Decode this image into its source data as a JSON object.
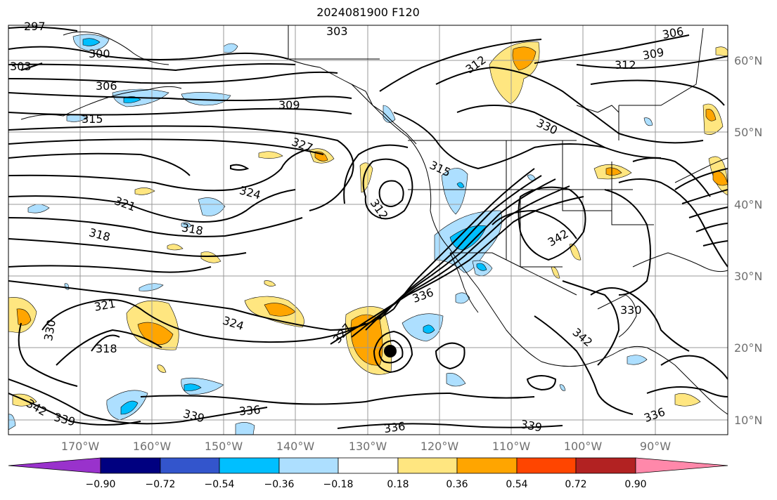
{
  "title": "2024081900 F120",
  "map": {
    "lat_labels": [
      "60°N",
      "50°N",
      "40°N",
      "30°N",
      "20°N",
      "10°N"
    ],
    "lon_labels": [
      "170°W",
      "160°W",
      "150°W",
      "140°W",
      "130°W",
      "120°W",
      "110°W",
      "100°W",
      "90°W"
    ],
    "contour_labels": [
      "297",
      "303",
      "306",
      "300",
      "303",
      "306",
      "315",
      "309",
      "312",
      "312",
      "309",
      "330",
      "327",
      "315",
      "324",
      "321",
      "318",
      "312",
      "318",
      "342",
      "336",
      "321",
      "324",
      "330",
      "318",
      "327",
      "342",
      "330",
      "342",
      "339",
      "339",
      "336",
      "336",
      "339",
      "336"
    ],
    "colors": {
      "contour": "#000000",
      "grid": "#999999",
      "land": "#000000"
    }
  },
  "colorbar": {
    "ticks": [
      "−0.90",
      "−0.72",
      "−0.54",
      "−0.36",
      "−0.18",
      "0.18",
      "0.36",
      "0.54",
      "0.72",
      "0.90"
    ],
    "bins": [
      "#9932CC",
      "#000080",
      "#3355CC",
      "#00BFFF",
      "#ADDFFF",
      "#FFFFFF",
      "#FFE680",
      "#FFA500",
      "#FF4500",
      "#B22222",
      "#FF88AA"
    ]
  }
}
